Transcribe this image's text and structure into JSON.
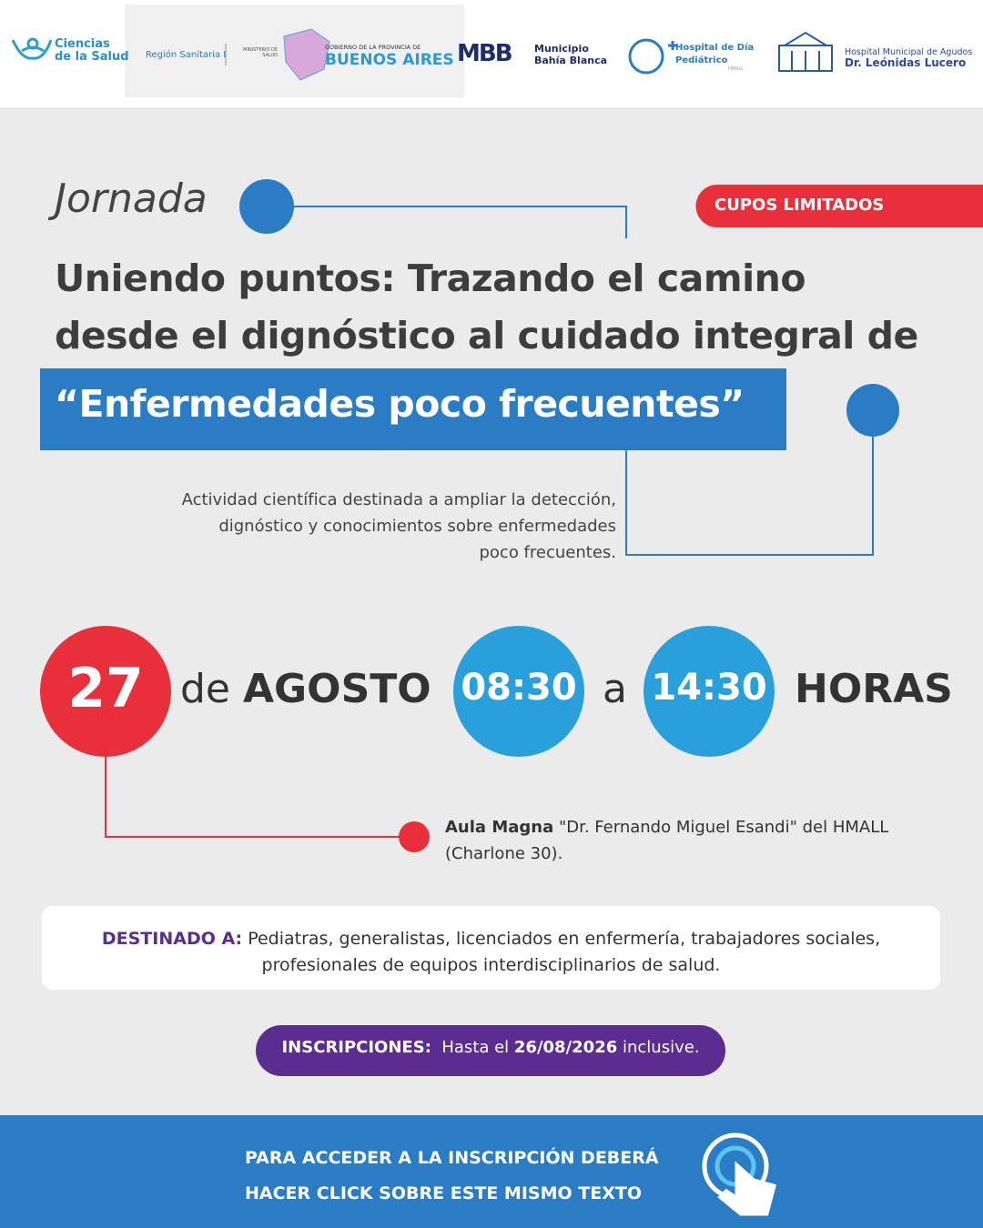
{
  "header": {
    "logos": {
      "ciencias_1": "Ciencias",
      "ciencias_2": "de la Salud",
      "region": "Región Sanitaria I",
      "ministerio": "MINISTERIO DE SALUD",
      "gobierno": "GOBIERNO DE LA PROVINCIA DE",
      "buenos_aires": "BUENOS AIRES",
      "mbb": "MBB",
      "municipio_1": "Municipio",
      "municipio_2": "Bahía Blanca",
      "hospital_dia_1": "Hospital de Día",
      "hospital_dia_2": "Pediátrico",
      "hospital_dia_3": "HMALL",
      "hmall_1": "Hospital Municipal de Agudos",
      "hmall_2": "Dr. Leónidas Lucero"
    }
  },
  "event": {
    "kind": "Jornada",
    "badge": "CUPOS LIMITADOS",
    "title_lines": [
      "Uniendo puntos: Trazando el camino",
      "desde el dignóstico al cuidado integral de"
    ],
    "highlight": "“Enfermedades poco frecuentes”",
    "description_lines": [
      "Actividad científica destinada a ampliar la detección,",
      "dignóstico y conocimientos sobre enfermedades",
      "poco frecuentes."
    ]
  },
  "schedule": {
    "day": "27",
    "de": "de",
    "month": "AGOSTO",
    "start": "08:30",
    "a": "a",
    "end": "14:30",
    "horas": "HORAS"
  },
  "location": {
    "place": "Aula Magna",
    "detail": "\"Dr. Fernando Miguel Esandi\" del HMALL",
    "address": "(Charlone 30)."
  },
  "audience": {
    "label": "DESTINADO A:",
    "text_1": "Pediatras, generalistas, licenciados en enfermería, trabajadores sociales,",
    "text_2": "profesionales de equipos interdisciplinarios de salud."
  },
  "registration": {
    "label": "INSCRIPCIONES:",
    "pre": "Hasta el",
    "date": "26/08/2026",
    "post": "inclusive."
  },
  "footer": {
    "lines": [
      "PARA ACCEDER A LA INSCRIPCIÓN DEBERÁ",
      "HACER CLICK SOBRE ESTE MISMO TEXTO"
    ]
  }
}
